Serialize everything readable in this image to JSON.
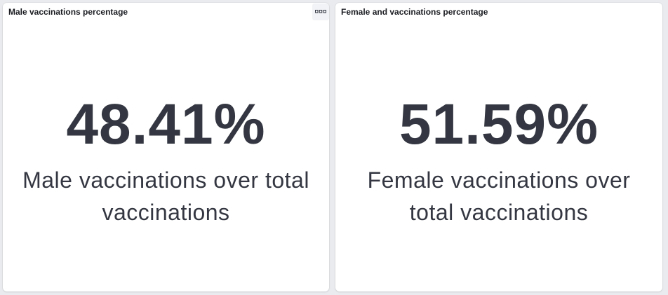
{
  "panels": [
    {
      "title": "Male vaccinations percentage",
      "value": "48.41%",
      "label": "Male vaccinations over total vaccinations",
      "options_icon": "ellipsis-boxes-icon"
    },
    {
      "title": "Female and vaccinations percentage",
      "value": "51.59%",
      "label": "Female vaccinations over total vaccinations"
    }
  ],
  "colors": {
    "background": "#e9ebee",
    "panel": "#ffffff",
    "metric_text": "#343741",
    "title_text": "#1a1c21"
  }
}
